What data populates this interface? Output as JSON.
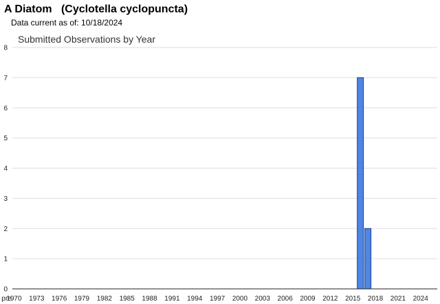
{
  "header": {
    "title": "A Diatom   (Cyclotella cyclopuncta)",
    "subtitle": "Data current as of: 10/18/2024"
  },
  "chart_data": {
    "type": "bar",
    "title": "Submitted Observations by Year",
    "xlabel": "",
    "ylabel": "",
    "ylim": [
      0,
      8
    ],
    "yticks": [
      0,
      1,
      2,
      3,
      4,
      5,
      6,
      7,
      8
    ],
    "grid": true,
    "x_tick_labels": [
      "pre",
      "1970",
      "1973",
      "1976",
      "1979",
      "1982",
      "1985",
      "1988",
      "1991",
      "1994",
      "1997",
      "2000",
      "2003",
      "2006",
      "2009",
      "2012",
      "2015",
      "2018",
      "2021",
      "2024"
    ],
    "categories": [
      "2016",
      "2017"
    ],
    "values": [
      7,
      2
    ],
    "bar_color": "#4f86e3",
    "bar_edge_color": "#1a3f8a"
  }
}
